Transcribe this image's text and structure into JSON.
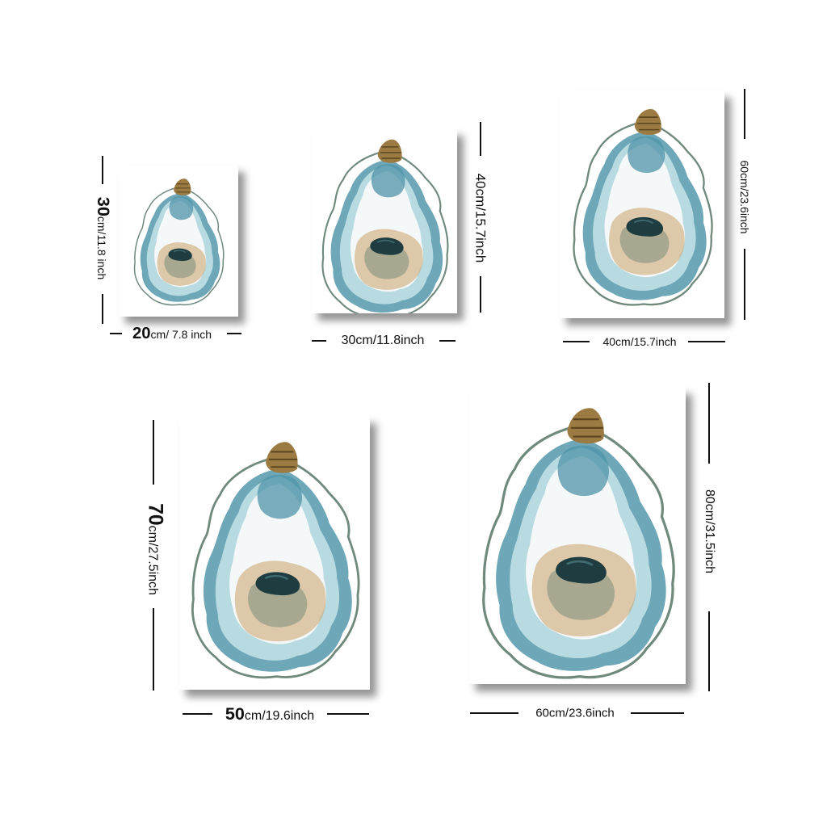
{
  "sizes": [
    {
      "width_num": "20",
      "width_unit": "cm/ 7.8 inch",
      "height_num": "30",
      "height_unit": "cm/11.8 inch"
    },
    {
      "width_label": "30cm/11.8inch",
      "height_label": "40cm/15.7inch"
    },
    {
      "width_label": "40cm/15.7inch",
      "height_label": "60cm/23.6inch"
    },
    {
      "width_num": "50",
      "width_unit": "cm/19.6inch",
      "height_num": "70",
      "height_unit": "cm/27.5inch"
    },
    {
      "width_label": "60cm/23.6inch",
      "height_label": "80cm/31.5inch"
    }
  ],
  "artwork": {
    "subject": "oyster-shell-watercolor"
  },
  "colors": {
    "shell_blue": "#5e9fb0",
    "shell_teal": "#8fc3cf",
    "shell_tan": "#c9a26a",
    "hinge_gold": "#9c7b43",
    "muscle_dark": "#1f3d40",
    "background": "#ffffff"
  }
}
